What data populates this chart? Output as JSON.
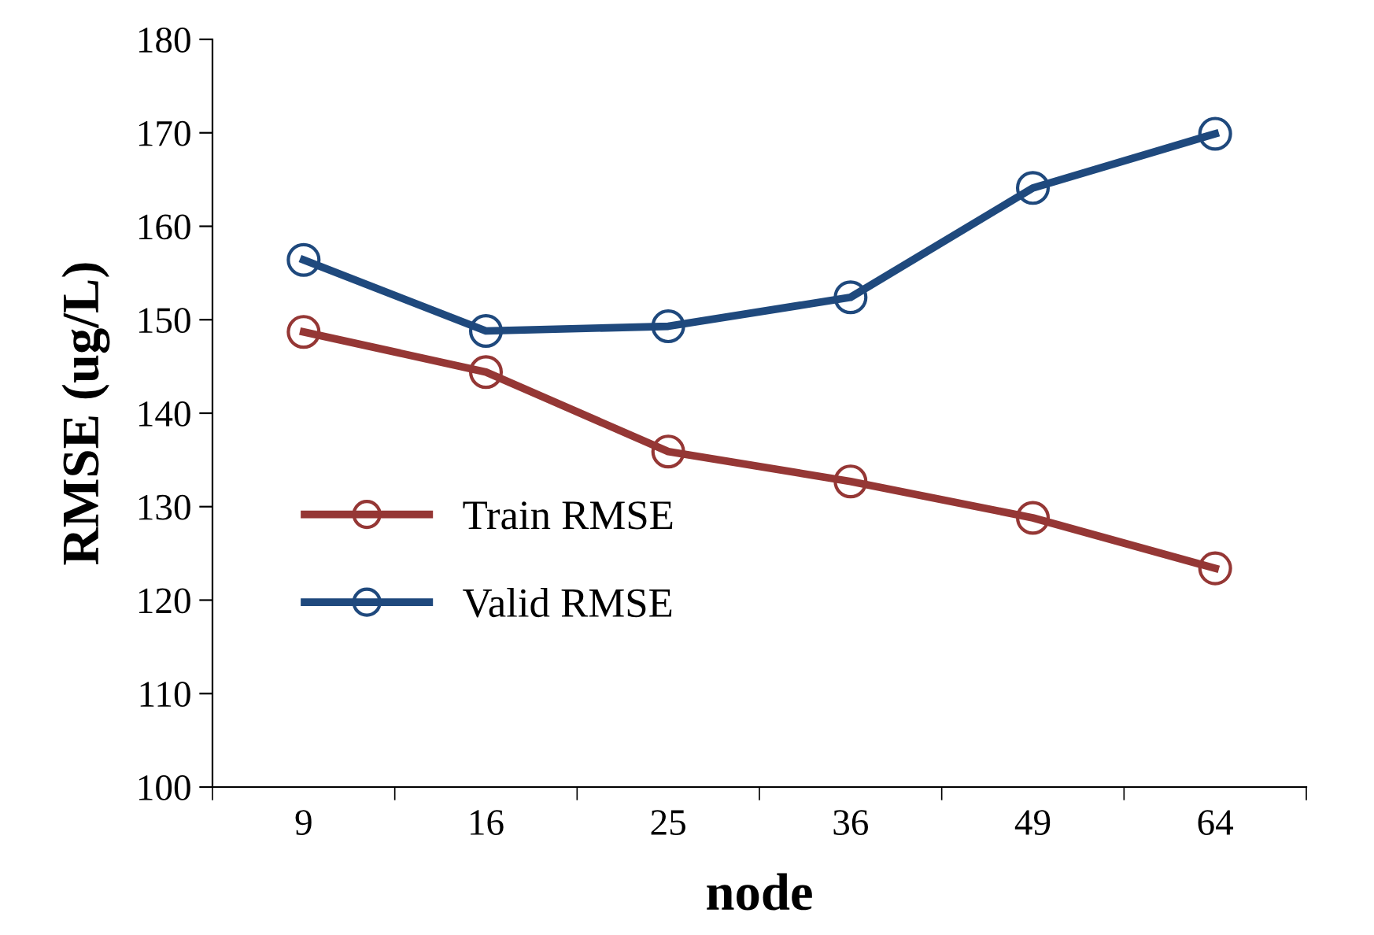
{
  "chart_data": {
    "type": "line",
    "xlabel": "node",
    "ylabel": "RMSE (ug/L)",
    "categories": [
      "9",
      "16",
      "25",
      "36",
      "49",
      "64"
    ],
    "series": [
      {
        "name": "Train RMSE",
        "color": "#953735",
        "values": [
          148.7,
          144.4,
          135.9,
          132.7,
          128.8,
          123.4
        ]
      },
      {
        "name": "Valid RMSE",
        "color": "#1f497d",
        "values": [
          156.4,
          148.8,
          149.3,
          152.4,
          164.1,
          169.9
        ]
      }
    ],
    "ylim": [
      100,
      180
    ],
    "yticks": [
      100,
      110,
      120,
      130,
      140,
      150,
      160,
      170,
      180
    ],
    "marker": "circle",
    "line_style": "solid",
    "grid": false,
    "legend": "left"
  }
}
